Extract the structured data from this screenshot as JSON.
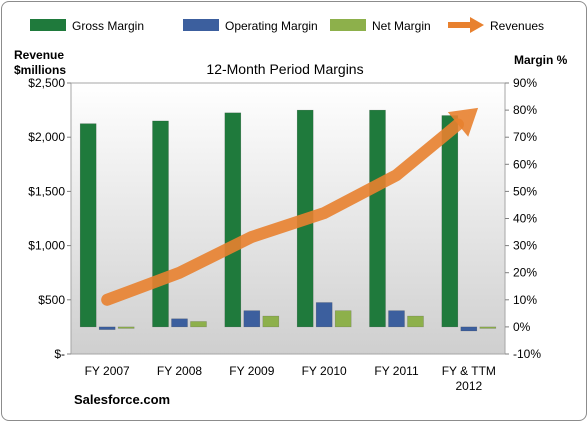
{
  "chart_data": {
    "type": "bar",
    "title": "12-Month Period Margins",
    "categories": [
      "FY 2007",
      "FY 2008",
      "FY 2009",
      "FY 2010",
      "FY 2011",
      "FY & TTM|2012"
    ],
    "left_axis": {
      "label_line1": "Revenue",
      "label_line2": "$millions",
      "ticks": [
        "$-",
        "$500",
        "$1,000",
        "$1,500",
        "$2,000",
        "$2,500"
      ],
      "range": [
        0,
        2500
      ]
    },
    "right_axis": {
      "label": "Margin %",
      "ticks": [
        "-10%",
        "0%",
        "10%",
        "20%",
        "30%",
        "40%",
        "50%",
        "60%",
        "70%",
        "80%",
        "90%"
      ],
      "range": [
        -10,
        90
      ]
    },
    "series": [
      {
        "name": "Gross Margin",
        "axis": "right",
        "kind": "bar",
        "color": "#1f7a3c",
        "values": [
          75,
          76,
          79,
          80,
          80,
          78
        ]
      },
      {
        "name": "Operating Margin",
        "axis": "right",
        "kind": "bar",
        "color": "#3c5f9e",
        "values": [
          -1,
          3,
          6,
          9,
          6,
          -1.5
        ]
      },
      {
        "name": "Net Margin",
        "axis": "right",
        "kind": "bar",
        "color": "#8db04b",
        "values": [
          -0.5,
          2,
          4,
          6,
          4,
          -0.5
        ]
      },
      {
        "name": "Revenues",
        "axis": "left",
        "kind": "arrow-line",
        "color": "#e8812f",
        "values": [
          500,
          750,
          1080,
          1300,
          1650,
          2200
        ]
      }
    ],
    "legend_position": "top",
    "source_label": "Salesforce.com"
  },
  "colors": {
    "plot_background": "#d9d9d9",
    "gross": "#1f7a3c",
    "operating": "#3c5f9e",
    "net": "#8db04b",
    "revenue": "#e8812f"
  }
}
